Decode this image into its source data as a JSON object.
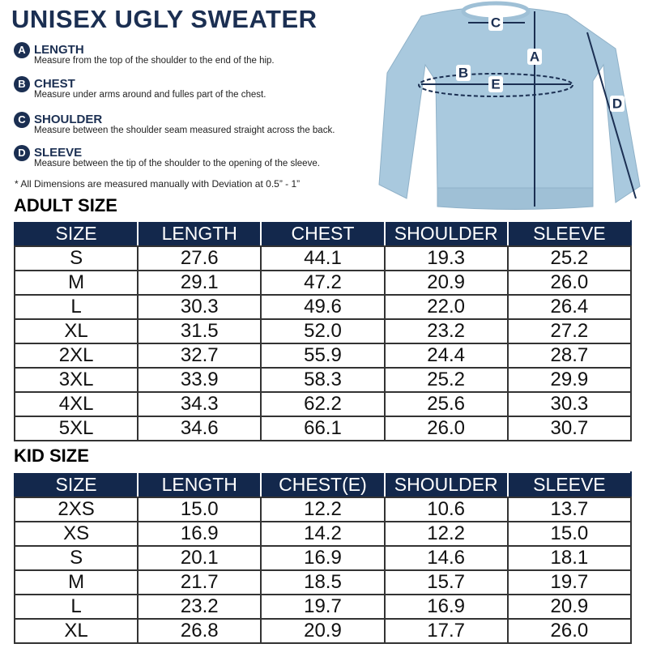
{
  "header": {
    "title": "UNISEX UGLY SWEATER"
  },
  "measures": [
    {
      "letter": "A",
      "label": "LENGTH",
      "description": "Measure from the top of the shoulder to the end of the hip."
    },
    {
      "letter": "B",
      "label": "CHEST",
      "description": "Measure under arms around and fulles part of the chest."
    },
    {
      "letter": "C",
      "label": "SHOULDER",
      "description": "Measure between the shoulder seam measured straight across the back."
    },
    {
      "letter": "D",
      "label": "SLEEVE",
      "description": "Measure between the tip of the shoulder to the opening of the sleeve."
    }
  ],
  "note": "* All Dimensions are measured manually with Deviation at 0.5” - 1”",
  "diagram": {
    "labels": [
      "C",
      "A",
      "B",
      "E",
      "D"
    ]
  },
  "tables": [
    {
      "title": "ADULT SIZE",
      "header": [
        "SIZE",
        "LENGTH",
        "CHEST",
        "SHOULDER",
        "SLEEVE"
      ],
      "rows": [
        [
          "S",
          "27.6",
          "44.1",
          "19.3",
          "25.2"
        ],
        [
          "M",
          "29.1",
          "47.2",
          "20.9",
          "26.0"
        ],
        [
          "L",
          "30.3",
          "49.6",
          "22.0",
          "26.4"
        ],
        [
          "XL",
          "31.5",
          "52.0",
          "23.2",
          "27.2"
        ],
        [
          "2XL",
          "32.7",
          "55.9",
          "24.4",
          "28.7"
        ],
        [
          "3XL",
          "33.9",
          "58.3",
          "25.2",
          "29.9"
        ],
        [
          "4XL",
          "34.3",
          "62.2",
          "25.6",
          "30.3"
        ],
        [
          "5XL",
          "34.6",
          "66.1",
          "26.0",
          "30.7"
        ]
      ]
    },
    {
      "title": "KID SIZE",
      "header": [
        "SIZE",
        "LENGTH",
        "CHEST(E)",
        "SHOULDER",
        "SLEEVE"
      ],
      "rows": [
        [
          "2XS",
          "15.0",
          "12.2",
          "10.6",
          "13.7"
        ],
        [
          "XS",
          "16.9",
          "14.2",
          "12.2",
          "15.0"
        ],
        [
          "S",
          "20.1",
          "16.9",
          "14.6",
          "18.1"
        ],
        [
          "M",
          "21.7",
          "18.5",
          "15.7",
          "19.7"
        ],
        [
          "L",
          "23.2",
          "19.7",
          "16.9",
          "20.9"
        ],
        [
          "XL",
          "26.8",
          "20.9",
          "17.7",
          "26.0"
        ]
      ]
    }
  ]
}
